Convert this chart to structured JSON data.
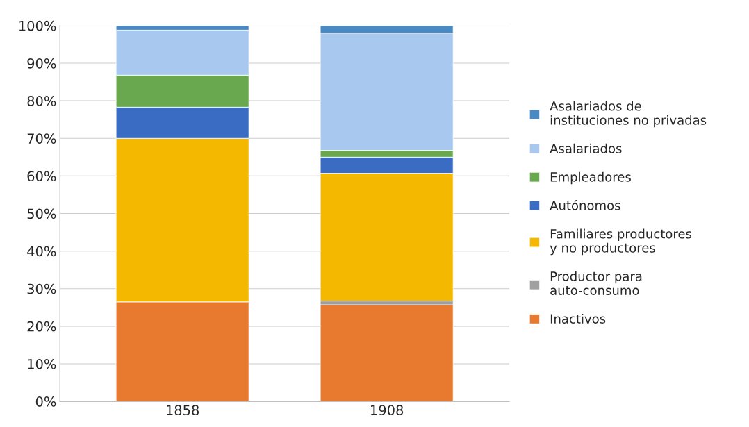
{
  "chart_data": {
    "type": "bar",
    "stacked": true,
    "categories": [
      "1858",
      "1908"
    ],
    "series": [
      {
        "name": "Inactivos",
        "color": "#e87a2f",
        "values": [
          26.5,
          25.7
        ]
      },
      {
        "name": "Productor para auto-consumo",
        "color": "#a0a0a0",
        "values": [
          0,
          1.0
        ]
      },
      {
        "name": "Familiares productores y no productores",
        "color": "#f5b800",
        "values": [
          43.5,
          34.0
        ]
      },
      {
        "name": "Autónomos",
        "color": "#3a6cc4",
        "values": [
          8.3,
          4.3
        ]
      },
      {
        "name": "Empleadores",
        "color": "#6aa84f",
        "values": [
          8.5,
          1.8
        ]
      },
      {
        "name": "Asalariados",
        "color": "#a9c8f0",
        "values": [
          12.0,
          31.2
        ]
      },
      {
        "name": "Asalariados de instituciones no privadas",
        "color": "#4a8ac4",
        "values": [
          1.2,
          2.0
        ]
      }
    ],
    "ylim": [
      0,
      100
    ],
    "yticks": [
      {
        "value": 0,
        "label": "0%"
      },
      {
        "value": 10,
        "label": "10%"
      },
      {
        "value": 20,
        "label": "20%"
      },
      {
        "value": 30,
        "label": "30%"
      },
      {
        "value": 40,
        "label": "40%"
      },
      {
        "value": 50,
        "label": "50%"
      },
      {
        "value": 60,
        "label": "60%"
      },
      {
        "value": 70,
        "label": "70%"
      },
      {
        "value": 80,
        "label": "80%"
      },
      {
        "value": 90,
        "label": "90%"
      },
      {
        "value": 100,
        "label": "100%"
      }
    ],
    "grid": "y",
    "legend": "right"
  }
}
